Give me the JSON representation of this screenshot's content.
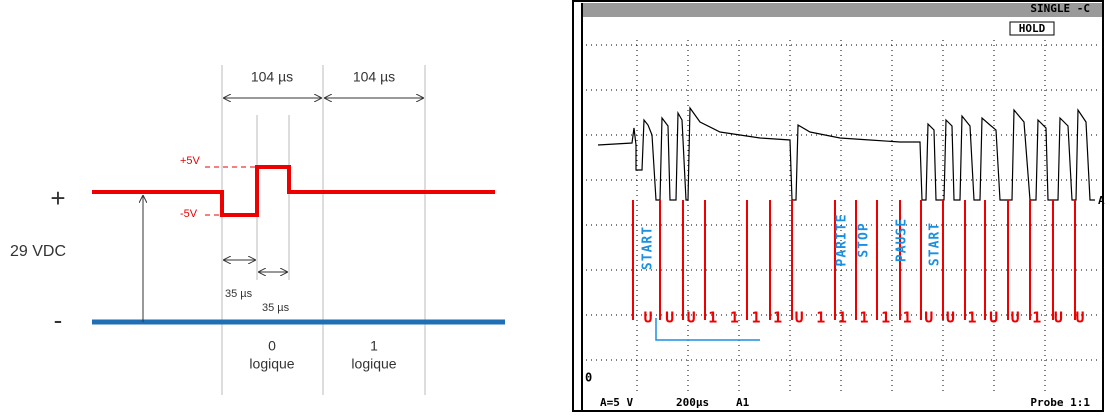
{
  "timing_diagram": {
    "period_labels": [
      "104 µs",
      "104 µs"
    ],
    "plus_5v": "+5V",
    "minus_5v": "-5V",
    "plus": "+",
    "supply": "29 VDC",
    "minus": "-",
    "pulse_labels": [
      "35 µs",
      "35 µs"
    ],
    "bits": [
      {
        "value": "0",
        "label": "logique"
      },
      {
        "value": "1",
        "label": "logique"
      }
    ]
  },
  "oscilloscope": {
    "mode": "SINGLE -C",
    "hold": "HOLD",
    "frame_labels": [
      "START",
      "PARITE",
      "STOP",
      "PAUSE",
      "START"
    ],
    "bits": [
      "U",
      "U",
      "U",
      "1",
      "1",
      "1",
      "1",
      "U",
      "1",
      "1",
      "1",
      "1",
      "1",
      "U",
      "U",
      "1",
      "U",
      "U",
      "1",
      "U",
      "U"
    ],
    "ground_marker": "0",
    "channel_marker": "A",
    "scale": "A=5 V",
    "timebase": "200µs",
    "trigger": "A1",
    "probe": "Probe 1:1"
  }
}
